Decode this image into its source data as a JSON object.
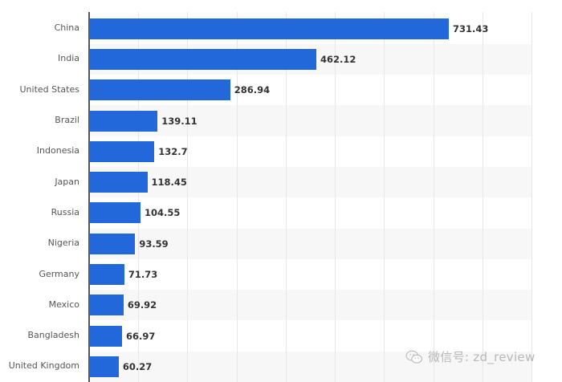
{
  "chart_data": {
    "type": "bar",
    "orientation": "horizontal",
    "title": "",
    "xlabel": "",
    "ylabel": "",
    "categories": [
      "China",
      "India",
      "United States",
      "Brazil",
      "Indonesia",
      "Japan",
      "Russia",
      "Nigeria",
      "Germany",
      "Mexico",
      "Bangladesh",
      "United Kingdom"
    ],
    "values": [
      731.43,
      462.12,
      286.94,
      139.11,
      132.7,
      118.45,
      104.55,
      93.59,
      71.73,
      69.92,
      66.97,
      60.27
    ],
    "value_labels": [
      "731.43",
      "462.12",
      "286.94",
      "139.11",
      "132.7",
      "118.45",
      "104.55",
      "93.59",
      "71.73",
      "69.92",
      "66.97",
      "60.27"
    ],
    "xlim": [
      0,
      900
    ],
    "grid_step": 100,
    "grid": true,
    "legend": null,
    "bar_color": "#2268db"
  },
  "watermark": {
    "text": "微信号: zd_review",
    "icon": "wechat-icon"
  }
}
